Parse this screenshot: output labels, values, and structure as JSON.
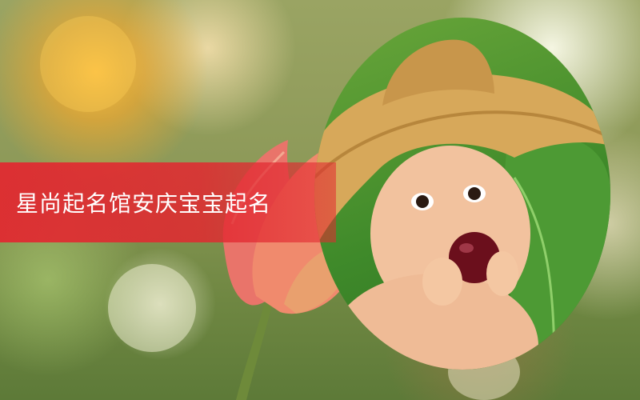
{
  "banner": {
    "text": "星尚起名馆安庆宝宝起名"
  },
  "colors": {
    "banner_red": "#e22830",
    "text": "#ffffff"
  },
  "image": {
    "subject": "baby-in-straw-hat-eating-plum-photo",
    "background": "blurred-bokeh-with-pink-tulip"
  }
}
